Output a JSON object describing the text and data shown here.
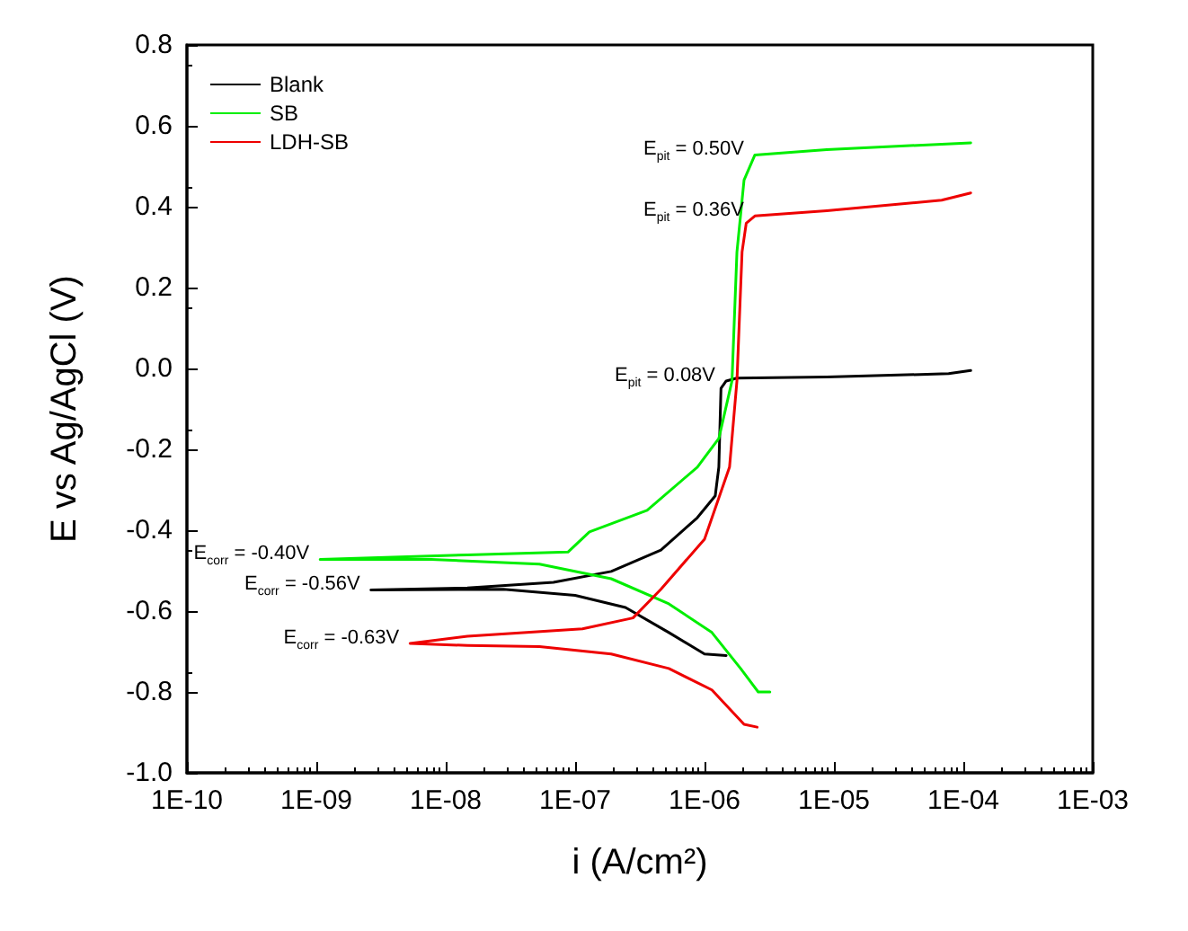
{
  "chart_data": {
    "type": "line",
    "xlabel": "i (A/cm²)",
    "ylabel": "E vs Ag/AgCl (V)",
    "log": "x",
    "grid": false,
    "legend": "top left",
    "marker": "none",
    "line_style": "solid",
    "xlim": [
      1e-10,
      0.001
    ],
    "xticks": [
      {
        "value": 1e-10,
        "label": "1E-10"
      },
      {
        "value": 1e-09,
        "label": "1E-09"
      },
      {
        "value": 1e-08,
        "label": "1E-08"
      },
      {
        "value": 1e-07,
        "label": "1E-07"
      },
      {
        "value": 1e-06,
        "label": "1E-06"
      },
      {
        "value": 1e-05,
        "label": "1E-05"
      },
      {
        "value": 0.0001,
        "label": "1E-04"
      },
      {
        "value": 0.001,
        "label": "1E-03"
      }
    ],
    "ylim": [
      -1.0,
      0.8
    ],
    "yticks": [
      {
        "value": -1.0,
        "label": "-1.0"
      },
      {
        "value": -0.8,
        "label": "-0.8"
      },
      {
        "value": -0.6,
        "label": "-0.6"
      },
      {
        "value": -0.4,
        "label": "-0.4"
      },
      {
        "value": -0.2,
        "label": "-0.2"
      },
      {
        "value": 0.0,
        "label": "0.0"
      },
      {
        "value": 0.2,
        "label": "0.2"
      },
      {
        "value": 0.4,
        "label": "0.4"
      },
      {
        "value": 0.6,
        "label": "0.6"
      },
      {
        "value": 0.8,
        "label": "0.8"
      }
    ],
    "series": [
      {
        "name": "Blank",
        "color": "#000000",
        "x": [
          1.47e-06,
          1e-06,
          5.3e-07,
          2.45e-07,
          1e-07,
          2.8e-08,
          2.64e-09,
          1.47e-08,
          6.8e-08,
          1.9e-07,
          4.6e-07,
          8.8e-07,
          1.21e-06,
          1.29e-06,
          1.34e-06,
          1.47e-06,
          1.78e-06,
          8.8e-06,
          7.7e-05,
          0.000114
        ],
        "values": [
          -0.71,
          -0.706,
          -0.653,
          -0.591,
          -0.561,
          -0.546,
          -0.548,
          -0.543,
          -0.529,
          -0.502,
          -0.449,
          -0.369,
          -0.315,
          -0.244,
          -0.049,
          -0.031,
          -0.024,
          -0.021,
          -0.013,
          -0.005
        ]
      },
      {
        "name": "SB",
        "color": "#00ee00",
        "x": [
          3.2e-06,
          2.6e-06,
          1.9e-06,
          1.14e-06,
          5.3e-07,
          1.9e-07,
          5.3e-08,
          7.7e-09,
          1.07e-09,
          1.47e-08,
          8.8e-08,
          1.29e-07,
          3.6e-07,
          8.8e-07,
          1.29e-06,
          1.63e-06,
          1.78e-06,
          2.02e-06,
          2.45e-06,
          8.8e-06,
          0.000114
        ],
        "values": [
          -0.8,
          -0.8,
          -0.742,
          -0.653,
          -0.582,
          -0.52,
          -0.484,
          -0.472,
          -0.472,
          -0.461,
          -0.454,
          -0.404,
          -0.351,
          -0.244,
          -0.173,
          -0.031,
          0.288,
          0.466,
          0.528,
          0.541,
          0.558
        ]
      },
      {
        "name": "LDH-SB",
        "color": "#ee0000",
        "x": [
          2.55e-06,
          2.02e-06,
          1.14e-06,
          5.3e-07,
          1.9e-07,
          5.3e-08,
          1.47e-08,
          5.3e-09,
          1.47e-08,
          1.14e-07,
          2.8e-07,
          4.6e-07,
          1e-06,
          1.56e-06,
          1.78e-06,
          1.95e-06,
          2.1e-06,
          2.45e-06,
          8.8e-06,
          6.8e-05,
          0.000114
        ],
        "values": [
          -0.887,
          -0.88,
          -0.795,
          -0.742,
          -0.706,
          -0.688,
          -0.685,
          -0.68,
          -0.662,
          -0.644,
          -0.617,
          -0.546,
          -0.422,
          -0.244,
          -0.031,
          0.288,
          0.359,
          0.377,
          0.39,
          0.416,
          0.434
        ]
      }
    ],
    "annotations": [
      {
        "text": "E$_{pit}$ = 0.50V",
        "x": 2.45e-06,
        "y": 0.528
      },
      {
        "text": "E$_{pit}$ = 0.36V",
        "x": 2.45e-06,
        "y": 0.377
      },
      {
        "text": "E$_{pit}$ = 0.08V",
        "x": 1.47e-06,
        "y": -0.031
      },
      {
        "text": "E$_{corr}$ = -0.40V",
        "x": 1.07e-09,
        "y": -0.472
      },
      {
        "text": "E$_{corr}$ = -0.56V",
        "x": 2.64e-09,
        "y": -0.548
      },
      {
        "text": "E$_{corr}$ = -0.63V",
        "x": 5.3e-09,
        "y": -0.68
      }
    ]
  }
}
